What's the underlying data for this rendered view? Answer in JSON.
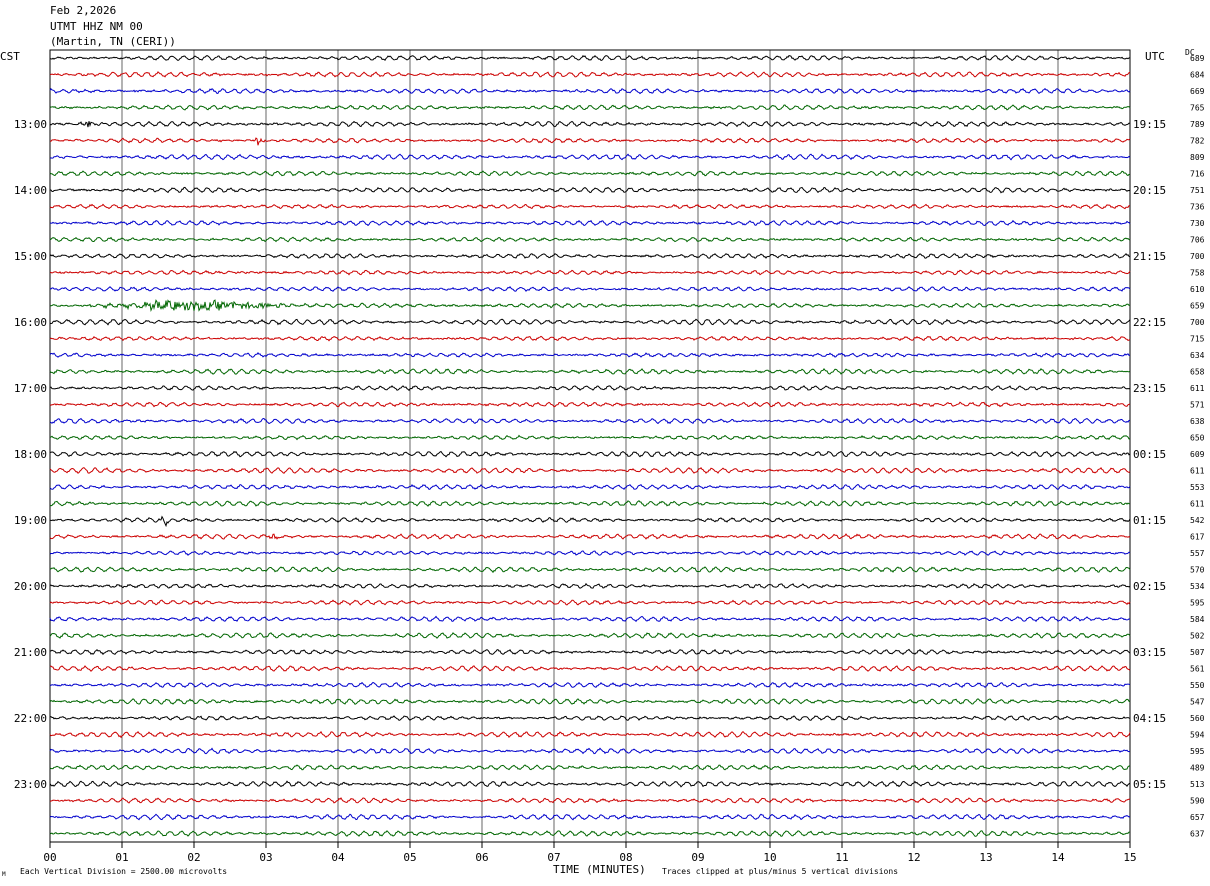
{
  "header": {
    "date": "Feb 2,2026",
    "station": "UTMT HHZ NM 00",
    "location": "(Martin, TN (CERI))"
  },
  "left_axis_label": "CST",
  "right_axis_label": "UTC",
  "dc_label": "DC",
  "footer": {
    "scale_note": "Each Vertical Division = 2500.00 microvolts",
    "clip_note": "Traces clipped at plus/minus 5 vertical divisions",
    "corner_mark": "M"
  },
  "colors": {
    "trace_cycle": [
      "#000000",
      "#cc0000",
      "#0000cc",
      "#006600"
    ],
    "grid": "#000000",
    "background": "#ffffff"
  },
  "chart_data": {
    "type": "line",
    "subtype": "helicorder",
    "xlabel": "TIME (MINUTES)",
    "x_ticks": [
      "00",
      "01",
      "02",
      "03",
      "04",
      "05",
      "06",
      "07",
      "08",
      "09",
      "10",
      "11",
      "12",
      "13",
      "14",
      "15"
    ],
    "xlim": [
      0,
      15
    ],
    "trace_minutes": 15,
    "trace_count": 48,
    "left_hour_labels": [
      "13:00",
      "14:00",
      "15:00",
      "16:00",
      "17:00",
      "18:00",
      "19:00",
      "20:00",
      "21:00",
      "22:00",
      "23:00"
    ],
    "right_hour_labels": [
      "19:15",
      "20:15",
      "21:15",
      "22:15",
      "23:15",
      "00:15",
      "01:15",
      "02:15",
      "03:15",
      "04:15",
      "05:15"
    ],
    "hour_label_first_trace": 4,
    "traces_per_hour": 4,
    "dc_offsets": [
      "689",
      "684",
      "669",
      "765",
      "789",
      "782",
      "809",
      "716",
      "751",
      "736",
      "730",
      "706",
      "700",
      "758",
      "610",
      "659",
      "700",
      "715",
      "634",
      "658",
      "611",
      "571",
      "638",
      "650",
      "609",
      "611",
      "553",
      "611",
      "542",
      "617",
      "557",
      "570",
      "534",
      "595",
      "584",
      "502",
      "507",
      "561",
      "550",
      "547",
      "560",
      "594",
      "595",
      "489",
      "513",
      "590",
      "657",
      "637"
    ],
    "events": [
      {
        "trace": 15,
        "minute": 2.0,
        "note": "elevated-noise burst"
      },
      {
        "trace": 29,
        "minute": 3.1,
        "note": "spike"
      },
      {
        "trace": 4,
        "minute": 0.5,
        "note": "spike"
      },
      {
        "trace": 5,
        "minute": 2.9,
        "note": "spike"
      },
      {
        "trace": 28,
        "minute": 1.6,
        "note": "spike"
      }
    ]
  }
}
